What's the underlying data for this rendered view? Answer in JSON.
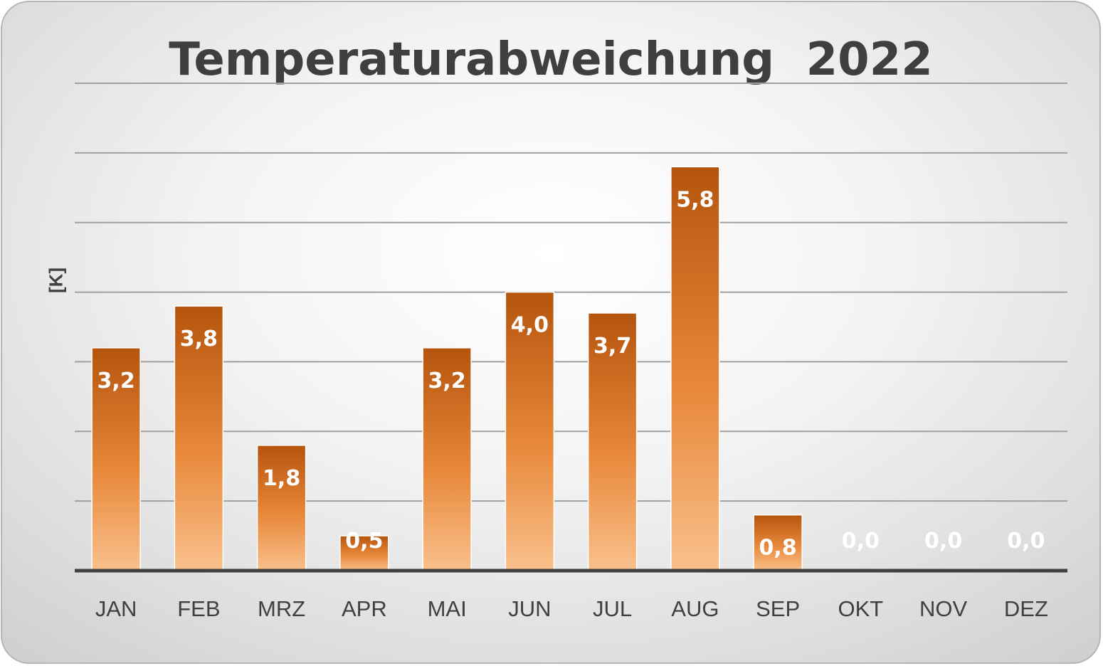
{
  "chart_data": {
    "type": "bar",
    "title": "Temperaturabweichung  2022",
    "xlabel": "",
    "ylabel": "[K]",
    "categories": [
      "JAN",
      "FEB",
      "MRZ",
      "APR",
      "MAI",
      "JUN",
      "JUL",
      "AUG",
      "SEP",
      "OKT",
      "NOV",
      "DEZ"
    ],
    "values": [
      3.2,
      3.8,
      1.8,
      0.5,
      3.2,
      4.0,
      3.7,
      5.8,
      0.8,
      0.0,
      0.0,
      0.0
    ],
    "value_labels": [
      "3,2",
      "3,8",
      "1,8",
      "0,5",
      "3,2",
      "4,0",
      "3,7",
      "5,8",
      "0,8",
      "0,0",
      "0,0",
      "0,0"
    ],
    "ylim": [
      0,
      7
    ],
    "grid": true,
    "legend": "none",
    "colors": {
      "bar_top": "#b5540c",
      "bar_mid": "#e8883a",
      "bar_bottom": "#f9c08c",
      "gridline": "#a0a0a0",
      "axis": "#404040",
      "text": "#404040",
      "bar_label": "#ffffff"
    }
  }
}
